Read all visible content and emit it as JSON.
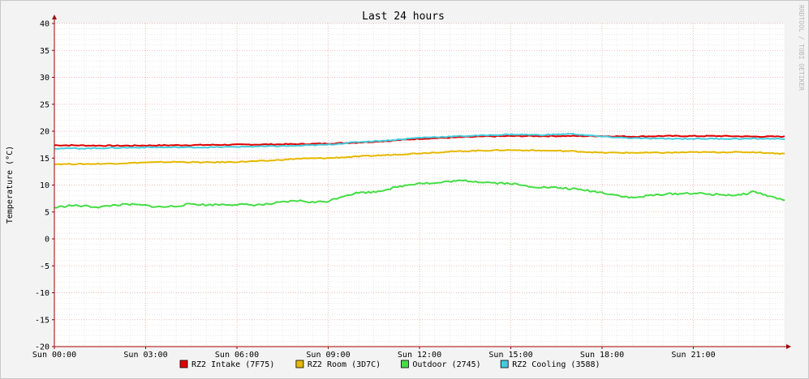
{
  "chart_data": {
    "type": "line",
    "title": "Last 24 hours",
    "ylabel": "Temperature (°C)",
    "xlabel": "",
    "watermark": "RRDTOOL / TOBI OETIKER",
    "ylim": [
      -20,
      40
    ],
    "yticks": [
      40,
      35,
      30,
      25,
      20,
      15,
      10,
      5,
      0,
      -5,
      -10,
      -15,
      -20
    ],
    "x_range_hours": [
      0,
      24
    ],
    "xticks": [
      {
        "h": 0,
        "label": "Sun 00:00"
      },
      {
        "h": 3,
        "label": "Sun 03:00"
      },
      {
        "h": 6,
        "label": "Sun 06:00"
      },
      {
        "h": 9,
        "label": "Sun 09:00"
      },
      {
        "h": 12,
        "label": "Sun 12:00"
      },
      {
        "h": 15,
        "label": "Sun 15:00"
      },
      {
        "h": 18,
        "label": "Sun 18:00"
      },
      {
        "h": 21,
        "label": "Sun 21:00"
      }
    ],
    "grid": true,
    "legend_position": "bottom",
    "series": [
      {
        "name": "RZ2 Intake (7F75)",
        "color": "#e00000",
        "points": [
          [
            0,
            17.4
          ],
          [
            2,
            17.3
          ],
          [
            4,
            17.4
          ],
          [
            6,
            17.5
          ],
          [
            8,
            17.6
          ],
          [
            9,
            17.7
          ],
          [
            10,
            17.9
          ],
          [
            11,
            18.2
          ],
          [
            12,
            18.6
          ],
          [
            13,
            18.8
          ],
          [
            14,
            19.0
          ],
          [
            15,
            19.1
          ],
          [
            16,
            19.1
          ],
          [
            17,
            19.1
          ],
          [
            18,
            19.1
          ],
          [
            19,
            19.0
          ],
          [
            20,
            19.1
          ],
          [
            21,
            19.1
          ],
          [
            22,
            19.1
          ],
          [
            23,
            19.0
          ],
          [
            24,
            19.0
          ]
        ]
      },
      {
        "name": "RZ2 Room (3D7C)",
        "color": "#e6b800",
        "points": [
          [
            0,
            13.9
          ],
          [
            1,
            13.9
          ],
          [
            2,
            14.0
          ],
          [
            3,
            14.2
          ],
          [
            4,
            14.3
          ],
          [
            5,
            14.2
          ],
          [
            6,
            14.3
          ],
          [
            7,
            14.5
          ],
          [
            8,
            14.9
          ],
          [
            9,
            15.0
          ],
          [
            10,
            15.3
          ],
          [
            11,
            15.6
          ],
          [
            12,
            15.9
          ],
          [
            13,
            16.2
          ],
          [
            14,
            16.4
          ],
          [
            15,
            16.5
          ],
          [
            16,
            16.4
          ],
          [
            17,
            16.3
          ],
          [
            18,
            16.0
          ],
          [
            19,
            16.0
          ],
          [
            20,
            16.0
          ],
          [
            21,
            16.1
          ],
          [
            22,
            16.1
          ],
          [
            23,
            16.1
          ],
          [
            24,
            15.8
          ]
        ]
      },
      {
        "name": "Outdoor (2745)",
        "color": "#44dd44",
        "points": [
          [
            0,
            5.8
          ],
          [
            0.5,
            6.2
          ],
          [
            1,
            6.1
          ],
          [
            1.5,
            5.9
          ],
          [
            2,
            6.3
          ],
          [
            2.5,
            6.4
          ],
          [
            3,
            6.2
          ],
          [
            3.5,
            5.9
          ],
          [
            4,
            6.1
          ],
          [
            4.5,
            6.5
          ],
          [
            5,
            6.3
          ],
          [
            5.5,
            6.4
          ],
          [
            6,
            6.4
          ],
          [
            6.5,
            6.3
          ],
          [
            7,
            6.4
          ],
          [
            7.5,
            6.8
          ],
          [
            8,
            7.1
          ],
          [
            8.5,
            6.8
          ],
          [
            9,
            7.0
          ],
          [
            9.5,
            8.0
          ],
          [
            10,
            8.6
          ],
          [
            10.5,
            8.7
          ],
          [
            11,
            9.3
          ],
          [
            11.5,
            9.9
          ],
          [
            12,
            10.4
          ],
          [
            12.5,
            10.3
          ],
          [
            13,
            10.7
          ],
          [
            13.5,
            10.8
          ],
          [
            14,
            10.6
          ],
          [
            14.5,
            10.4
          ],
          [
            15,
            10.3
          ],
          [
            15.5,
            9.8
          ],
          [
            16,
            9.6
          ],
          [
            16.5,
            9.5
          ],
          [
            17,
            9.3
          ],
          [
            17.5,
            9.0
          ],
          [
            18,
            8.6
          ],
          [
            18.5,
            8.1
          ],
          [
            19,
            7.6
          ],
          [
            19.5,
            8.0
          ],
          [
            20,
            8.3
          ],
          [
            20.5,
            8.4
          ],
          [
            21,
            8.5
          ],
          [
            21.5,
            8.3
          ],
          [
            22,
            8.2
          ],
          [
            22.5,
            8.1
          ],
          [
            23,
            8.8
          ],
          [
            23.5,
            7.9
          ],
          [
            24,
            7.2
          ]
        ]
      },
      {
        "name": "RZ2 Cooling (3588)",
        "color": "#44ccdd",
        "points": [
          [
            0,
            16.8
          ],
          [
            1,
            16.8
          ],
          [
            2,
            16.9
          ],
          [
            3,
            17.0
          ],
          [
            4,
            17.0
          ],
          [
            5,
            17.0
          ],
          [
            6,
            17.1
          ],
          [
            7,
            17.2
          ],
          [
            8,
            17.3
          ],
          [
            9,
            17.5
          ],
          [
            10,
            18.0
          ],
          [
            11,
            18.3
          ],
          [
            12,
            18.8
          ],
          [
            13,
            19.0
          ],
          [
            14,
            19.2
          ],
          [
            15,
            19.4
          ],
          [
            16,
            19.3
          ],
          [
            17,
            19.5
          ],
          [
            18,
            19.0
          ],
          [
            19,
            18.7
          ],
          [
            20,
            18.6
          ],
          [
            21,
            18.6
          ],
          [
            22,
            18.6
          ],
          [
            23,
            18.6
          ],
          [
            24,
            18.6
          ]
        ]
      }
    ]
  }
}
